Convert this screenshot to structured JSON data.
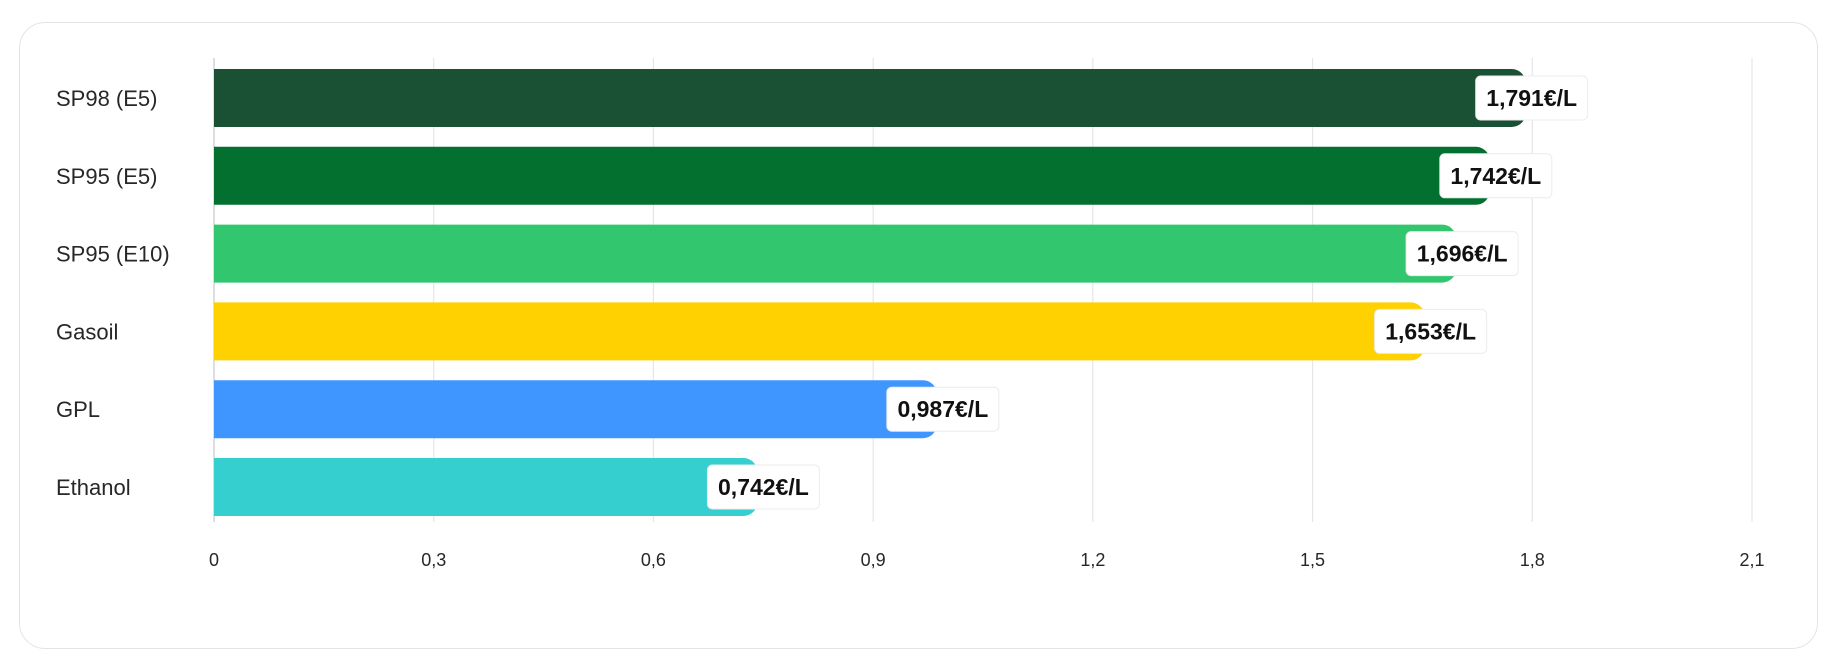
{
  "chart_data": {
    "type": "bar",
    "orientation": "horizontal",
    "categories": [
      "SP98 (E5)",
      "SP95 (E5)",
      "SP95 (E10)",
      "Gasoil",
      "GPL",
      "Ethanol"
    ],
    "values": [
      1.791,
      1.742,
      1.696,
      1.653,
      0.987,
      0.742
    ],
    "value_labels": [
      "1,791€/L",
      "1,742€/L",
      "1,696€/L",
      "1,653€/L",
      "0,987€/L",
      "0,742€/L"
    ],
    "colors": [
      "#1a5033",
      "#047030",
      "#32c76e",
      "#ffd100",
      "#4096ff",
      "#36cfcf"
    ],
    "xlim": [
      0,
      2.1
    ],
    "x_ticks": [
      0,
      0.3,
      0.6,
      0.9,
      1.2,
      1.5,
      1.8,
      2.1
    ],
    "x_tick_labels": [
      "0",
      "0,3",
      "0,6",
      "0,9",
      "1,2",
      "1,5",
      "1,8",
      "2,1"
    ],
    "grid": "vertical",
    "legend": "none"
  }
}
